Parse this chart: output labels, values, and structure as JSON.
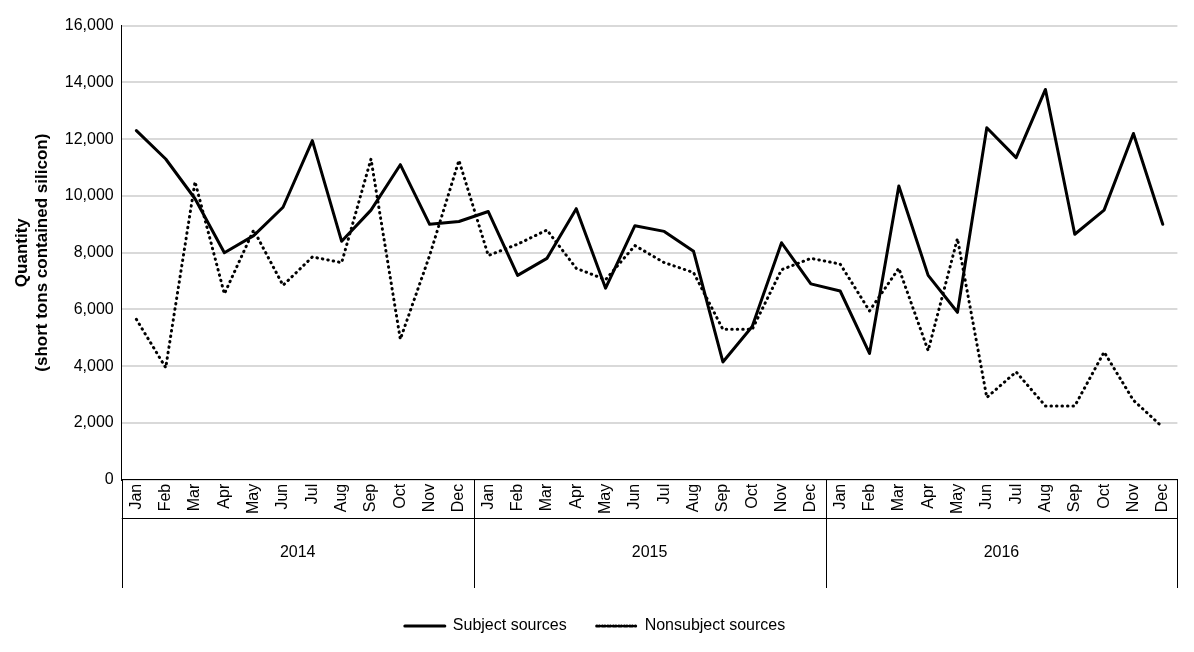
{
  "chart_data": {
    "type": "line",
    "ylabel": "Quantity\n(short tons contained silicon)",
    "categories": [
      "Jan",
      "Feb",
      "Mar",
      "Apr",
      "May",
      "Jun",
      "Jul",
      "Aug",
      "Sep",
      "Oct",
      "Nov",
      "Dec",
      "Jan",
      "Feb",
      "Mar",
      "Apr",
      "May",
      "Jun",
      "Jul",
      "Aug",
      "Sep",
      "Oct",
      "Nov",
      "Dec",
      "Jan",
      "Feb",
      "Mar",
      "Apr",
      "May",
      "Jun",
      "Jul",
      "Aug",
      "Sep",
      "Oct",
      "Nov",
      "Dec"
    ],
    "annotations": [
      "2014",
      "2015",
      "2016"
    ],
    "series": [
      {
        "name": "Subject sources",
        "color": "#000000",
        "line_style": "solid",
        "values": [
          12300,
          11300,
          9900,
          8000,
          8600,
          9600,
          11950,
          8400,
          9500,
          11100,
          9000,
          9100,
          9450,
          7200,
          7800,
          9550,
          6750,
          8950,
          8750,
          8050,
          4150,
          5400,
          8350,
          6900,
          6650,
          4450,
          10350,
          7200,
          5900,
          12400,
          11350,
          13750,
          8650,
          9500,
          12200,
          9000
        ]
      },
      {
        "name": "Nonsubject sources",
        "color": "#000000",
        "line_style": "dotted",
        "values": [
          5650,
          3950,
          10500,
          6550,
          8800,
          6850,
          7850,
          7650,
          11300,
          4950,
          7900,
          11250,
          7900,
          8300,
          8800,
          7450,
          7050,
          8250,
          7650,
          7300,
          5300,
          5300,
          7400,
          7800,
          7600,
          5950,
          7450,
          4550,
          8500,
          2900,
          3800,
          2600,
          2600,
          4500,
          2800,
          1850
        ]
      }
    ],
    "ylim": [
      0,
      16000
    ],
    "yticks": [
      0,
      {
        "value": 2000,
        "label": "2,000"
      },
      {
        "value": 4000,
        "label": "4,000"
      },
      {
        "value": 6000,
        "label": "6,000"
      },
      {
        "value": 8000,
        "label": "8,000"
      },
      {
        "value": 10000,
        "label": "10,000"
      },
      {
        "value": 12000,
        "label": "12,000"
      },
      {
        "value": 14000,
        "label": "14,000"
      },
      {
        "value": 16000,
        "label": "16,000"
      }
    ],
    "grid": "y",
    "legend": "bottom",
    "marker": "none"
  }
}
